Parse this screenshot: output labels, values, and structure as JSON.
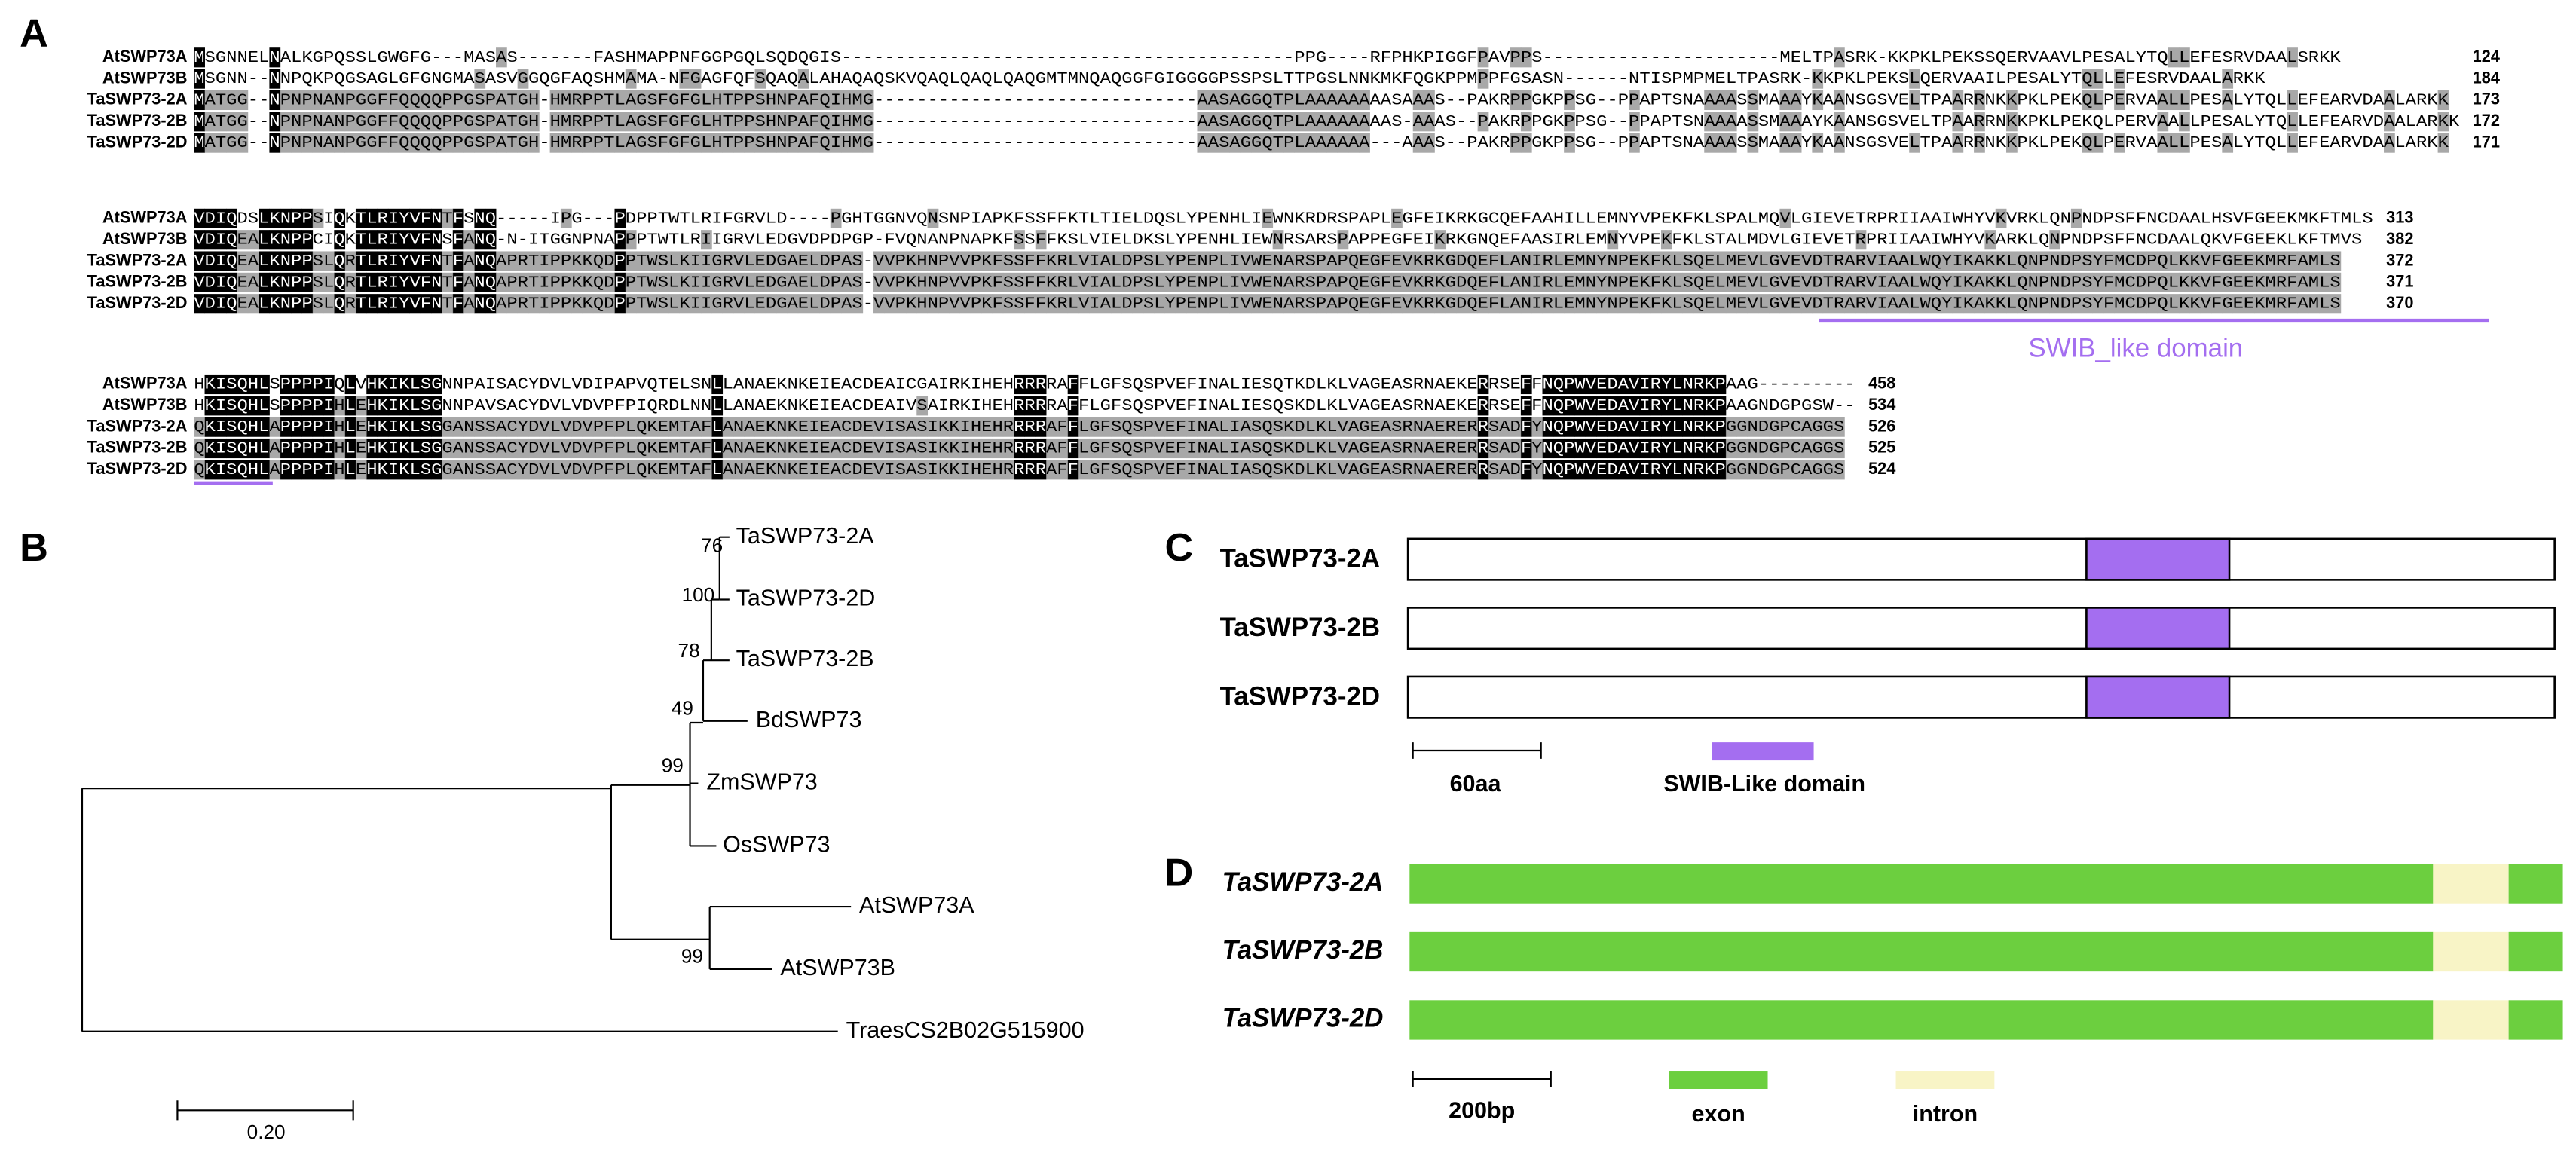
{
  "panel_labels": [
    "A",
    "B",
    "C",
    "D"
  ],
  "alignment": {
    "blocks": [
      {
        "rows": [
          {
            "name": "AtSWP73A",
            "sequence": "MSGNNELNALKGPQSSLGWGFG---MASAS-------FASHMAPPNFGGPGQLSQDQGIS------------------------------------------PPG----RFPHKPIGGFPAVPPS----------------------MELTPASRK-KKPKLPEKSSQERVAAVLPESALYTQLLEFESRVDAALSRKK",
            "end": 124
          },
          {
            "name": "AtSWP73B",
            "sequence": "MSGNN--NNPQKPQGSAGLGFGNGMASASVGGQGFAQSHMAMA-NFGAGFQFSQAQALAHAQAQSKVQAQLQAQLQAQGMTMNQAQGGFGIGGGGPSSPSLTTPGSLNNKMKFQGKPPMPPFGSASN------NTISPMPMELTPASRK-KKPKLPEKSLQERVAAILPESALYTQLLEFESRVDAALARKK",
            "end": 184
          },
          {
            "name": "TaSWP73-2A",
            "sequence": "MATGG--NPNPNANPGGFFQQQQPPGSPATGH-HMRPPTLAGSFGFGLHTPPSHNPAFQIHMG------------------------------AASAGGQTPLAAAAAAAASAAAS--PAKRPPGKPPSG--PPAPTSNAAAASSMAAAYKAANSGSVELTPAARRNKKPKLPEKQLPERVAALLPESALYTQLLEFEARVDAALARKK",
            "end": 173
          },
          {
            "name": "TaSWP73-2B",
            "sequence": "MATGG--NPNPNANPGGFFQQQQPPGSPATGH-HMRPPTLAGSFGFGLHTPPSHNPAFQIHMG------------------------------AASAGGQTPLAAAAAAAAS-AAAS--PAKRPPGKPPSG--PPAPTSNAAAASSMAAAYKAANSGSVELTPAARRNKKPKLPEKQLPERVAALLPESALYTQLLEFEARVDAALARKK",
            "end": 172
          },
          {
            "name": "TaSWP73-2D",
            "sequence": "MATGG--NPNPNANPGGFFQQQQPPGSPATGH-HMRPPTLAGSFGFGLHTPPSHNPAFQIHMG------------------------------AASAGGQTPLAAAAAA---AAAS--PAKRPPGKPPSG--PPAPTSNAAAASSMAAAYKAANSGSVELTPAARRNKKPKLPEKQLPERVAALLPESALYTQLLEFEARVDAALARKK",
            "end": 171
          }
        ]
      },
      {
        "rows": [
          {
            "name": "AtSWP73A",
            "sequence": "VDIQDSLKNPPSIQKTLRIYVFNTFSNQ-----IPG---PDPPTWTLRIFGRVLD----PGHTGGNVQNSNPIAPKFSSFFKTLTIELDQSLYPENHLIEWNKRDRSPAPLEGFEIKRKGCQEFAAHILLEMNYVPEKFKLSPALMQVLGIEVETRPRIIAAIWHYVKVRKLQNPNDPSFFNCDAALHSVFGEEKMKFTMLS",
            "end": 313
          },
          {
            "name": "AtSWP73B",
            "sequence": "VDIQEALKNPPCIQKTLRIYVFNSFANQ-N-ITGGNPNAPPPTWTLRIIGRVLEDGVDPDPGP-FVQNANPNAPKFSSFFKSLVIELDKSLYPENHLIEWNRSARSPAPPEGFEIKRKGNQEFAASIRLEMNYVPEKFKLSTALMDVLGIEVETRPRIIAAIWHYVKARKLQNPNDPSFFNCDAALQKVFGEEKLKFTMVS",
            "end": 382
          },
          {
            "name": "TaSWP73-2A",
            "sequence": "VDIQEALKNPPSLQRTLRIYVFNTFANQAPRTIPPKKQDPPTWSLKIIGRVLEDGAELDPAS-VVPKHNPVVPKFSSFFKRLVIALDPSLYPENPLIVWENARSPAPQEGFEVKRKGDQEFLANIRLEMNYNPEKFKLSQELMEVLGVEVDTRARVIAALWQYIKAKKLQNPNDPSYFMCDPQLKKVFGEEKMRFAMLS",
            "end": 372
          },
          {
            "name": "TaSWP73-2B",
            "sequence": "VDIQEALKNPPSLQRTLRIYVFNTFANQAPRTIPPKKQDPPTWSLKIIGRVLEDGAELDPAS-VVPKHNPVVPKFSSFFKRLVIALDPSLYPENPLIVWENARSPAPQEGFEVKRKGDQEFLANIRLEMNYNPEKFKLSQELMEVLGVEVDTRARVIAALWQYIKAKKLQNPNDPSYFMCDPQLKKVFGEEKMRFAMLS",
            "end": 371
          },
          {
            "name": "TaSWP73-2D",
            "sequence": "VDIQEALKNPPSLQRTLRIYVFNTFANQAPRTIPPKKQDPPTWSLKIIGRVLEDGAELDPAS-VVPKHNPVVPKFSSFFKRLVIALDPSLYPENPLIVWENARSPAPQEGFEVKRKGDQEFLANIRLEMNYNPEKFKLSQELMEVLGVEVDTRARVIAALWQYIKAKKLQNPNDPSYFMCDPQLKKVFGEEKMRFAMLS",
            "end": 370
          }
        ]
      },
      {
        "rows": [
          {
            "name": "AtSWP73A",
            "sequence": "HKISQHLSPPPPIQLVHKIKLSGNNPAISACYDVLVDIPAPVQTELSNLLANAEKNKEIEACDEAICGAIRKIHEHRRRRAFFLGFSQSPVEFINALIESQTKDLKLVAGEASRNAEKERRSEFFNQPWVEDAVIRYLNRKPAAG---------",
            "end": 458
          },
          {
            "name": "AtSWP73B",
            "sequence": "HKISQHLSPPPPIHLEHKIKLSGNNPAVSACYDVLVDVPFPIQRDLNNLLANAEKNKEIEACDEAIVSAIRKIHEHRRRRAFFLGFSQSPVEFINALIESQSKDLKLVAGEASRNAEKERRSEFFNQPWVEDAVIRYLNRKPAAGNDGPGSW--",
            "end": 534
          },
          {
            "name": "TaSWP73-2A",
            "sequence": "QKISQHLAPPPPIHLEHKIKLSGGANSSACYDVLVDVPFPLQKEMTAFLANAEKNKEIEACDEVISASIKKIHEHRRRRAFFLGFSQSPVEFINALIASQSKDLKLVAGEASRNAERERRSADFYNQPWVEDAVIRYLNRKPGGNDGPCAGGS",
            "end": 526
          },
          {
            "name": "TaSWP73-2B",
            "sequence": "QKISQHLAPPPPIHLEHKIKLSGGANSSACYDVLVDVPFPLQKEMTAFLANAEKNKEIEACDEVISASIKKIHEHRRRRAFFLGFSQSPVEFINALIASQSKDLKLVAGEASRNAERERRSADFYNQPWVEDAVIRYLNRKPGGNDGPCAGGS",
            "end": 525
          },
          {
            "name": "TaSWP73-2D",
            "sequence": "QKISQHLAPPPPIHLEHKIKLSGGANSSACYDVLVDVPFPLQKEMTAFLANAEKNKEIEACDEVISASIKKIHEHRRRRAFFLGFSQSPVEFINALIASQSKDLKLVAGEASRNAERERRSADFYNQPWVEDAVIRYLNRKPGGNDGPCAGGS",
            "end": 524
          }
        ]
      }
    ],
    "domain_label": "SWIB_like domain"
  },
  "tree": {
    "leaves": [
      "TaSWP73-2A",
      "TaSWP73-2D",
      "TaSWP73-2B",
      "BdSWP73",
      "ZmSWP73",
      "OsSWP73",
      "AtSWP73A",
      "AtSWP73B",
      "TraesCS2B02G515900"
    ],
    "bootstrap": [
      76,
      100,
      78,
      49,
      99,
      99
    ],
    "scale_label": "0.20"
  },
  "domains": {
    "genes": [
      "TaSWP73-2A",
      "TaSWP73-2B",
      "TaSWP73-2D"
    ],
    "scale_label": "60aa",
    "legend": "SWIB-Like domain"
  },
  "gene_structure": {
    "genes": [
      "TaSWP73-2A",
      "TaSWP73-2B",
      "TaSWP73-2D"
    ],
    "scale_label": "200bp",
    "legend": [
      "exon",
      "intron"
    ]
  }
}
